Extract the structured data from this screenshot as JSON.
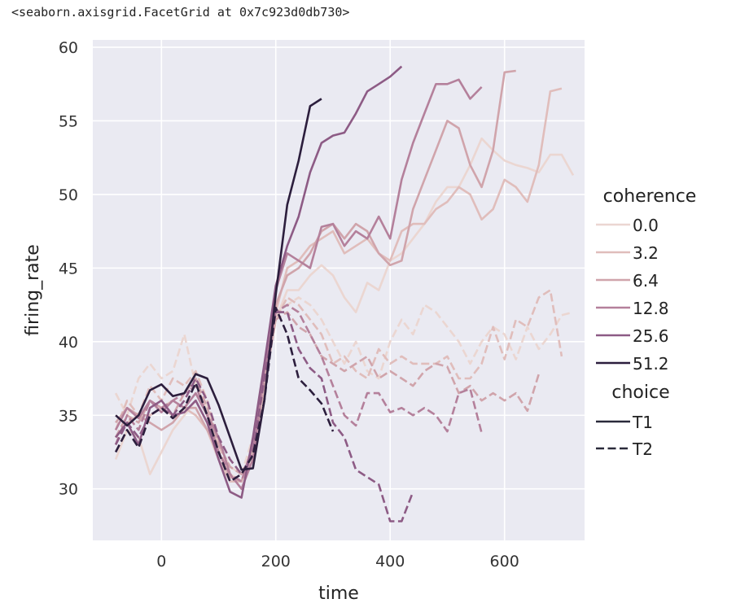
{
  "output_repr": "<seaborn.axisgrid.FacetGrid at 0x7c923d0db730>",
  "chart_data": {
    "type": "line",
    "xlabel": "time",
    "ylabel": "firing_rate",
    "xlim": [
      -120,
      740
    ],
    "ylim": [
      26.5,
      60.5
    ],
    "xticks": [
      0,
      200,
      400,
      600
    ],
    "yticks": [
      30,
      35,
      40,
      45,
      50,
      55,
      60
    ],
    "grid": true,
    "legend_position": "right",
    "legend": {
      "hue_title": "coherence",
      "hue_levels": [
        "0.0",
        "3.2",
        "6.4",
        "12.8",
        "25.6",
        "51.2"
      ],
      "style_title": "choice",
      "style_levels": [
        "T1",
        "T2"
      ]
    },
    "colors": {
      "background": "#eaeaf2",
      "grid": "#ffffff",
      "hue": [
        "#ebd6d1",
        "#e0bdbb",
        "#d0a4ab",
        "#b4809b",
        "#8d5b85",
        "#2c1e3d"
      ]
    },
    "series": [
      {
        "coherence": "0.0",
        "choice": "T1",
        "x": [
          -80,
          -60,
          -40,
          -20,
          0,
          20,
          40,
          60,
          80,
          100,
          120,
          140,
          160,
          180,
          200,
          220,
          240,
          260,
          280,
          300,
          320,
          340,
          360,
          380,
          400,
          420,
          440,
          460,
          480,
          500,
          520,
          540,
          560,
          580,
          600,
          620,
          640,
          660,
          680,
          700,
          720
        ],
        "y": [
          32,
          34,
          33.5,
          31,
          32.5,
          34,
          35,
          36,
          34.5,
          32.5,
          31,
          30.5,
          32,
          37,
          41.5,
          43.5,
          43.5,
          44.5,
          45.2,
          44.5,
          43,
          42,
          44,
          43.5,
          45.5,
          46,
          47,
          48,
          49.5,
          50.5,
          50.5,
          52,
          53.8,
          53,
          52.3,
          52,
          51.8,
          51.5,
          52.7,
          52.7,
          51.3
        ]
      },
      {
        "coherence": "0.0",
        "choice": "T2",
        "x": [
          -80,
          -60,
          -40,
          -20,
          0,
          20,
          40,
          60,
          80,
          100,
          120,
          140,
          160,
          180,
          200,
          220,
          240,
          260,
          280,
          300,
          320,
          340,
          360,
          380,
          400,
          420,
          440,
          460,
          480,
          500,
          520,
          540,
          560,
          580,
          600,
          620,
          640,
          660,
          680,
          700,
          720
        ],
        "y": [
          36.5,
          35,
          37.5,
          38.5,
          37.5,
          38,
          40.5,
          37,
          35.5,
          33,
          31.5,
          31,
          33.5,
          38,
          42,
          42.5,
          43,
          42.5,
          41.5,
          40,
          38.5,
          40,
          38,
          37.5,
          40,
          41.5,
          40.5,
          42.5,
          42,
          41,
          40,
          38.5,
          40,
          41,
          40.5,
          38.8,
          41,
          39.5,
          40.5,
          41.8,
          42
        ]
      },
      {
        "coherence": "3.2",
        "choice": "T1",
        "x": [
          -80,
          -60,
          -40,
          -20,
          0,
          20,
          40,
          60,
          80,
          100,
          120,
          140,
          160,
          180,
          200,
          220,
          240,
          260,
          280,
          300,
          320,
          340,
          360,
          380,
          400,
          420,
          440,
          460,
          480,
          500,
          520,
          540,
          560,
          580,
          600,
          620,
          640,
          660,
          680,
          700,
          720
        ],
        "y": [
          33.5,
          34.5,
          35,
          35,
          35.5,
          36,
          35.5,
          35,
          34,
          32,
          30.5,
          30.5,
          33,
          37.5,
          42,
          45,
          45.5,
          46.5,
          47,
          47.5,
          46,
          46.5,
          47,
          46,
          45.5,
          47.5,
          48,
          48,
          49,
          49.5,
          50.5,
          50,
          48.3,
          49,
          51,
          50.5,
          49.5,
          52,
          57,
          57.2,
          null
        ]
      },
      {
        "coherence": "3.2",
        "choice": "T2",
        "x": [
          -80,
          -60,
          -40,
          -20,
          0,
          20,
          40,
          60,
          80,
          100,
          120,
          140,
          160,
          180,
          200,
          220,
          240,
          260,
          280,
          300,
          320,
          340,
          360,
          380,
          400,
          420,
          440,
          460,
          480,
          500,
          520,
          540,
          560,
          580,
          600,
          620,
          640,
          660,
          680,
          700,
          720
        ],
        "y": [
          34,
          36,
          35,
          37,
          36,
          37.5,
          37,
          38,
          36,
          33,
          31,
          30.5,
          32.5,
          37,
          41.5,
          43,
          42.5,
          41.5,
          40.5,
          38.5,
          39,
          38,
          37.5,
          39.5,
          38.5,
          39,
          38.5,
          38.5,
          38.5,
          39,
          37.5,
          37.5,
          38.5,
          41,
          38.8,
          41.5,
          41,
          43,
          43.5,
          39,
          null
        ]
      },
      {
        "coherence": "6.4",
        "choice": "T1",
        "x": [
          -80,
          -60,
          -40,
          -20,
          0,
          20,
          40,
          60,
          80,
          100,
          120,
          140,
          160,
          180,
          200,
          220,
          240,
          260,
          280,
          300,
          320,
          340,
          360,
          380,
          400,
          420,
          440,
          460,
          480,
          500,
          520,
          540,
          560,
          580,
          600,
          620
        ],
        "y": [
          34.5,
          35.5,
          35,
          34.5,
          34,
          34.5,
          35.5,
          35.5,
          34,
          32.5,
          30.8,
          30.5,
          33,
          38,
          42.5,
          44.5,
          45,
          46,
          47.5,
          48,
          47,
          48,
          47.5,
          46,
          45.2,
          45.5,
          49,
          51,
          53,
          55,
          54.5,
          52,
          50.5,
          53,
          58.3,
          58.4
        ]
      },
      {
        "coherence": "6.4",
        "choice": "T2",
        "x": [
          -80,
          -60,
          -40,
          -20,
          0,
          20,
          40,
          60,
          80,
          100,
          120,
          140,
          160,
          180,
          200,
          220,
          240,
          260,
          280,
          300,
          320,
          340,
          360,
          380,
          400,
          420,
          440,
          460,
          480,
          500,
          520,
          540,
          560,
          580,
          600,
          620,
          640,
          660
        ],
        "y": [
          33.5,
          35,
          34.5,
          36,
          35.5,
          35,
          36.5,
          37.5,
          35.5,
          33,
          31.5,
          31,
          32,
          37,
          41.5,
          42,
          41,
          40.5,
          39,
          38.5,
          38,
          38.5,
          39,
          37.5,
          38,
          37.5,
          37,
          38,
          38.5,
          38.3,
          36.5,
          37,
          36,
          36.5,
          36,
          36.5,
          35.3,
          37.8
        ]
      },
      {
        "coherence": "12.8",
        "choice": "T1",
        "x": [
          -80,
          -60,
          -40,
          -20,
          0,
          20,
          40,
          60,
          80,
          100,
          120,
          140,
          160,
          180,
          200,
          220,
          240,
          260,
          280,
          300,
          320,
          340,
          360,
          380,
          400,
          420,
          440,
          460,
          480,
          500,
          520,
          540,
          560
        ],
        "y": [
          34,
          35.5,
          34.8,
          36,
          35.2,
          36,
          35.5,
          36.5,
          35,
          33.5,
          31,
          30,
          32,
          38,
          43.5,
          46,
          45.5,
          45,
          47.8,
          48,
          46.5,
          47.5,
          47,
          48.5,
          47,
          51,
          53.5,
          55.5,
          57.5,
          57.5,
          57.8,
          56.5,
          57.3
        ]
      },
      {
        "coherence": "12.8",
        "choice": "T2",
        "x": [
          -80,
          -60,
          -40,
          -20,
          0,
          20,
          40,
          60,
          80,
          100,
          120,
          140,
          160,
          180,
          200,
          220,
          240,
          260,
          280,
          300,
          320,
          340,
          360,
          380,
          400,
          420,
          440,
          460,
          480,
          500,
          520,
          540,
          560
        ],
        "y": [
          33,
          35,
          34,
          36,
          35.5,
          36,
          36.5,
          37,
          35,
          32.5,
          31,
          30.5,
          33,
          38,
          42,
          42.5,
          42,
          40.5,
          39,
          37,
          35,
          34.3,
          36.5,
          36.5,
          35.2,
          35.5,
          35,
          35.5,
          35,
          33.9,
          36.5,
          36.8,
          33.8
        ]
      },
      {
        "coherence": "25.6",
        "choice": "T1",
        "x": [
          -80,
          -60,
          -40,
          -20,
          0,
          20,
          40,
          60,
          80,
          100,
          120,
          140,
          160,
          180,
          200,
          220,
          240,
          260,
          280,
          300,
          320,
          340,
          360,
          380,
          400,
          420
        ],
        "y": [
          33.5,
          34.5,
          33,
          35.5,
          36,
          35,
          35.2,
          36,
          34.5,
          32,
          29.8,
          29.4,
          33.5,
          38.5,
          43.8,
          46.5,
          48.5,
          51.5,
          53.5,
          54,
          54.2,
          55.5,
          57,
          57.5,
          58,
          58.7
        ]
      },
      {
        "coherence": "25.6",
        "choice": "T2",
        "x": [
          -80,
          -60,
          -40,
          -20,
          0,
          20,
          40,
          60,
          80,
          100,
          120,
          140,
          160,
          180,
          200,
          220,
          240,
          260,
          280,
          300,
          320,
          340,
          360,
          380,
          400,
          420,
          440
        ],
        "y": [
          33,
          34.5,
          33.5,
          35,
          35.5,
          35,
          36,
          37.5,
          36,
          33.5,
          32,
          31,
          32.5,
          37.5,
          42,
          42,
          39.5,
          38.2,
          37.5,
          34.5,
          33.5,
          31.3,
          30.8,
          30.3,
          27.8,
          27.8,
          29.8
        ]
      },
      {
        "coherence": "51.2",
        "choice": "T1",
        "x": [
          -80,
          -60,
          -40,
          -20,
          0,
          20,
          40,
          60,
          80,
          100,
          120,
          140,
          160,
          180,
          200,
          220,
          240,
          260,
          280
        ],
        "y": [
          35,
          34.3,
          35,
          36.7,
          37.1,
          36.3,
          36.5,
          37.8,
          37.5,
          35.7,
          33.5,
          31.3,
          31.4,
          36,
          43.2,
          49.3,
          52.3,
          56,
          56.5
        ]
      },
      {
        "coherence": "51.2",
        "choice": "T2",
        "x": [
          -80,
          -60,
          -40,
          -20,
          0,
          20,
          40,
          60,
          80,
          100,
          120,
          140,
          160,
          180,
          200,
          220,
          240,
          260,
          280,
          300
        ],
        "y": [
          32.5,
          34,
          32.8,
          35,
          35.5,
          34.8,
          35.5,
          37.2,
          35,
          32.5,
          30.5,
          31,
          32.3,
          36,
          42.3,
          40.5,
          37.5,
          36.7,
          35.8,
          33.9
        ]
      }
    ]
  }
}
